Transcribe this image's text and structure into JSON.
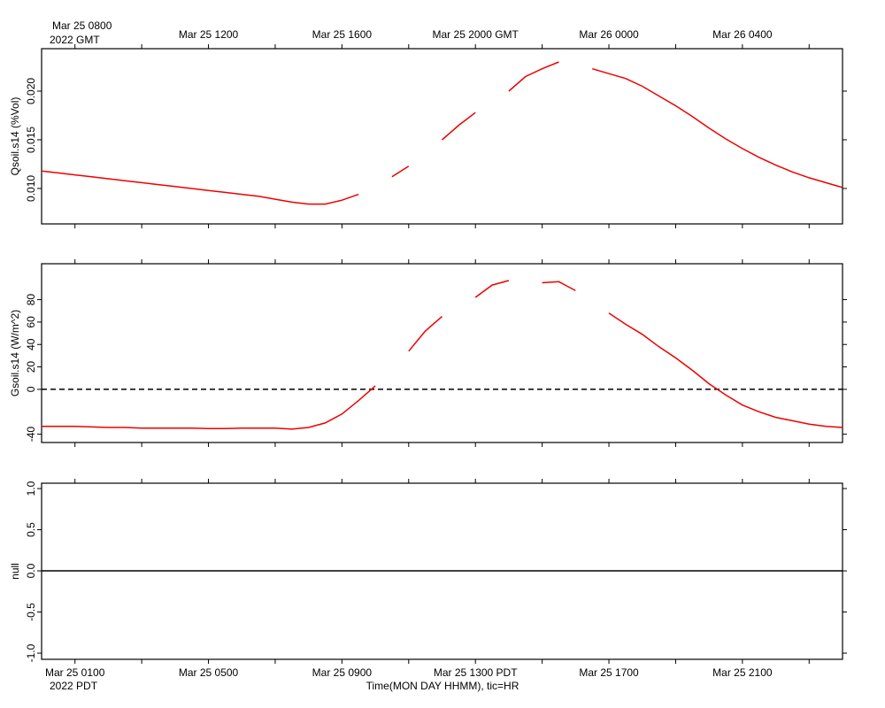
{
  "chart_data": [
    {
      "type": "line",
      "ylabel": "Qsoil.s14 (%Vol)",
      "xlim": [
        0,
        24
      ],
      "xticks": [
        1,
        3,
        5,
        7,
        9,
        11,
        13,
        15,
        17,
        19,
        21,
        23
      ],
      "top_xticks": [
        {
          "value": 1,
          "label": "Mar 25 0800"
        },
        {
          "value": 5,
          "label": "Mar 25 1200"
        },
        {
          "value": 9,
          "label": "Mar 25 1600"
        },
        {
          "value": 13,
          "label": "Mar 25 2000 GMT"
        },
        {
          "value": 17,
          "label": "Mar 26 0000"
        },
        {
          "value": 21,
          "label": "Mar 26 0400"
        }
      ],
      "top_note": "2022 GMT",
      "ylim": [
        0.00636,
        0.02436
      ],
      "yticks": [
        {
          "value": 0.01,
          "label": "0.010"
        },
        {
          "value": 0.015,
          "label": "0.015"
        },
        {
          "value": 0.02,
          "label": "0.020"
        }
      ],
      "x": [
        0,
        0.5,
        1,
        1.5,
        2,
        2.5,
        3,
        3.5,
        4,
        4.5,
        5,
        5.5,
        6,
        6.5,
        7,
        7.5,
        8,
        8.5,
        9,
        9.5,
        10,
        10.5,
        11,
        11.5,
        12,
        12.5,
        13,
        13.5,
        14,
        14.5,
        15,
        15.5,
        16,
        16.5,
        17,
        17.5,
        18,
        18.5,
        19,
        19.5,
        20,
        20.5,
        21,
        21.5,
        22,
        22.5,
        23,
        23.5,
        24
      ],
      "series": [
        {
          "color": "#ee0000",
          "values": [
            0.0118,
            0.0116,
            0.0114,
            0.0112,
            0.011,
            0.0108,
            0.0106,
            0.0104,
            0.0102,
            0.01,
            0.0098,
            0.0096,
            0.0094,
            0.0092,
            0.0089,
            0.0086,
            0.0084,
            0.0084,
            0.0088,
            0.0094,
            null,
            0.0112,
            0.0123,
            null,
            0.015,
            0.0165,
            0.0178,
            null,
            0.02,
            0.0215,
            0.0223,
            0.023,
            null,
            0.0223,
            0.0218,
            0.0213,
            0.0205,
            0.0195,
            0.0185,
            0.0174,
            0.0162,
            0.0151,
            0.0141,
            0.0132,
            0.0124,
            0.0117,
            0.0111,
            0.0106,
            0.0101
          ]
        }
      ]
    },
    {
      "type": "line",
      "ylabel": "Gsoil.s14 (W/m^2)",
      "xlim": [
        0,
        24
      ],
      "xticks": [
        1,
        3,
        5,
        7,
        9,
        11,
        13,
        15,
        17,
        19,
        21,
        23
      ],
      "ylim": [
        -47.4,
        112
      ],
      "yticks": [
        -40,
        0,
        20,
        40,
        60,
        80
      ],
      "hline": 0,
      "hline_style": "dashed",
      "x": [
        0,
        0.5,
        1,
        1.5,
        2,
        2.5,
        3,
        3.5,
        4,
        4.5,
        5,
        5.5,
        6,
        6.5,
        7,
        7.5,
        8,
        8.5,
        9,
        9.5,
        10,
        10.5,
        11,
        11.5,
        12,
        12.5,
        13,
        13.5,
        14,
        14.5,
        15,
        15.5,
        16,
        16.5,
        17,
        17.5,
        18,
        18.5,
        19,
        19.5,
        20,
        20.5,
        21,
        21.5,
        22,
        22.5,
        23,
        23.5,
        24
      ],
      "series": [
        {
          "color": "#ee0000",
          "values": [
            -33,
            -33,
            -33,
            -33.5,
            -34,
            -34,
            -34.5,
            -34.5,
            -34.5,
            -34.5,
            -35,
            -35,
            -34.5,
            -34.5,
            -34.5,
            -35.5,
            -34,
            -30,
            -22,
            -10,
            3,
            null,
            34,
            52,
            65,
            null,
            82,
            93,
            97,
            null,
            95,
            96,
            88,
            null,
            68,
            58,
            49,
            38,
            28,
            17,
            5,
            -5,
            -14,
            -20,
            -25,
            -28,
            -31,
            -33,
            -34
          ]
        }
      ]
    },
    {
      "type": "line",
      "ylabel": "null",
      "xlim": [
        0,
        24
      ],
      "xticks": [
        1,
        3,
        5,
        7,
        9,
        11,
        13,
        15,
        17,
        19,
        21,
        23
      ],
      "bottom_xticks": [
        {
          "value": 1,
          "label": "Mar 25 0100"
        },
        {
          "value": 5,
          "label": "Mar 25 0500"
        },
        {
          "value": 9,
          "label": "Mar 25 0900"
        },
        {
          "value": 13,
          "label": "Mar 25 1300 PDT"
        },
        {
          "value": 17,
          "label": "Mar 25 1700"
        },
        {
          "value": 21,
          "label": "Mar 25 2100"
        }
      ],
      "bottom_note": "2022 PDT",
      "xlabel": "Time(MON DAY HHMM), tic=HR",
      "ylim": [
        -1.075,
        1.065
      ],
      "yticks": [
        {
          "value": -1,
          "label": "-1.0"
        },
        {
          "value": -0.5,
          "label": "-0.5"
        },
        {
          "value": 0,
          "label": "0.0"
        },
        {
          "value": 0.5,
          "label": "0.5"
        },
        {
          "value": 1,
          "label": "1.0"
        }
      ],
      "hline": 0,
      "hline_style": "solid",
      "series": []
    }
  ]
}
